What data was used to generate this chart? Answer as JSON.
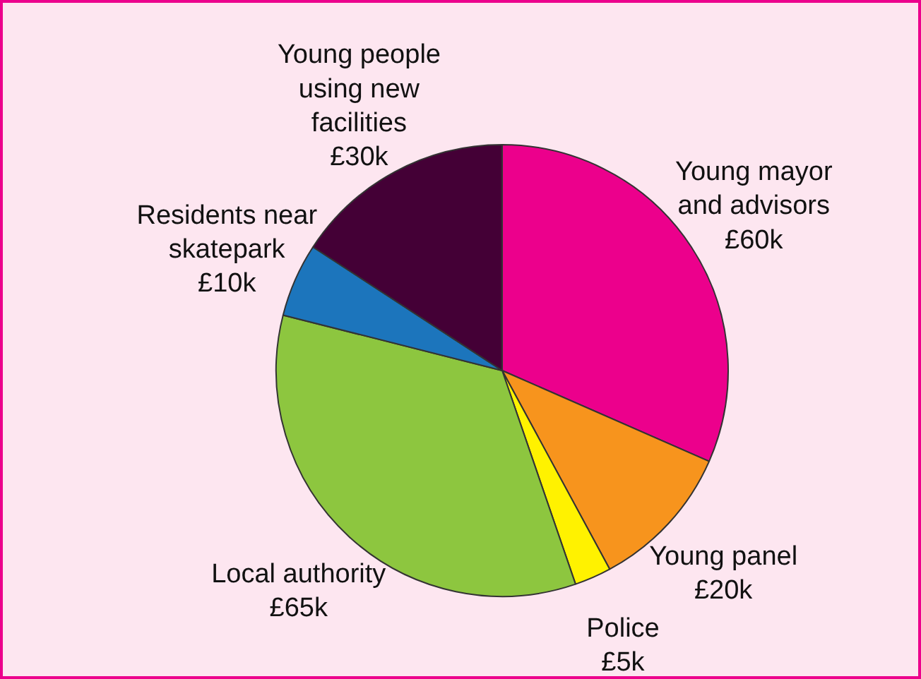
{
  "chart_data": {
    "type": "pie",
    "categories": [
      "Young mayor\nand advisors",
      "Young panel",
      "Police",
      "Local authority",
      "Residents near\nskatepark",
      "Young people\nusing new\nfacilities"
    ],
    "values": [
      60,
      20,
      5,
      65,
      10,
      30
    ],
    "value_labels": [
      "£60k",
      "£20k",
      "£5k",
      "£65k",
      "£10k",
      "£30k"
    ],
    "colors": [
      "#ec008c",
      "#f7941d",
      "#fff200",
      "#8dc63f",
      "#1c75bc",
      "#440036"
    ]
  }
}
